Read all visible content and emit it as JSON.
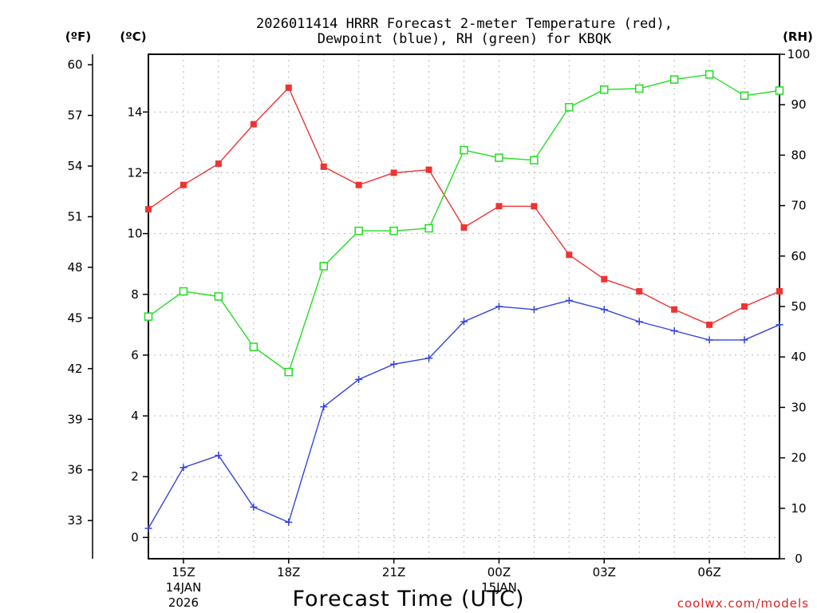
{
  "chart_data": {
    "type": "line",
    "title_line1": "2026011414 HRRR Forecast 2-meter Temperature (red),",
    "title_line2": "Dewpoint (blue), RH (green) for KBQK",
    "xlabel": "Forecast Time (UTC)",
    "credit": "coolwx.com/models",
    "x_range": [
      14,
      32
    ],
    "x": [
      14,
      15,
      16,
      17,
      18,
      19,
      20,
      21,
      22,
      23,
      24,
      25,
      26,
      27,
      28,
      29,
      30,
      31,
      32
    ],
    "x_ticks": [
      {
        "x": 15,
        "label": "15Z",
        "sub1": "14JAN",
        "sub2": "2026"
      },
      {
        "x": 18,
        "label": "18Z",
        "sub1": "",
        "sub2": ""
      },
      {
        "x": 21,
        "label": "21Z",
        "sub1": "",
        "sub2": ""
      },
      {
        "x": 24,
        "label": "00Z",
        "sub1": "15JAN",
        "sub2": ""
      },
      {
        "x": 27,
        "label": "03Z",
        "sub1": "",
        "sub2": ""
      },
      {
        "x": 30,
        "label": "06Z",
        "sub1": "",
        "sub2": ""
      }
    ],
    "left_axis_c": {
      "unit_label": "(ºC)",
      "range": [
        -0.7,
        15.9
      ],
      "ticks": [
        0,
        2,
        4,
        6,
        8,
        10,
        12,
        14
      ]
    },
    "left_axis_f": {
      "unit_label": "(ºF)",
      "ticks": [
        33,
        36,
        39,
        42,
        45,
        48,
        51,
        54,
        57,
        60
      ]
    },
    "right_axis_rh": {
      "unit_label": "(RH)",
      "range": [
        0,
        100
      ],
      "ticks": [
        0,
        10,
        20,
        30,
        40,
        50,
        60,
        70,
        80,
        90,
        100
      ]
    },
    "series": [
      {
        "name": "Temperature (°C)",
        "color": "#ee3333",
        "marker": "filled-square",
        "axis": "left",
        "values": [
          10.8,
          11.6,
          12.3,
          13.6,
          14.8,
          12.2,
          11.6,
          12.0,
          12.1,
          10.2,
          10.9,
          10.9,
          9.3,
          8.5,
          8.1,
          7.5,
          7.0,
          7.6,
          8.1
        ]
      },
      {
        "name": "Dewpoint (°C)",
        "color": "#3344dd",
        "marker": "plus",
        "axis": "left",
        "values": [
          0.3,
          2.3,
          2.7,
          1.0,
          0.5,
          4.3,
          5.2,
          5.7,
          5.9,
          7.1,
          7.6,
          7.5,
          7.8,
          7.5,
          7.1,
          6.8,
          6.5,
          6.5,
          7.0
        ]
      },
      {
        "name": "RH (%)",
        "color": "#22dd22",
        "marker": "open-square",
        "axis": "right",
        "values": [
          48,
          53,
          52,
          42,
          37,
          58,
          65,
          65,
          65.5,
          81,
          79.5,
          79,
          89.5,
          93,
          93.2,
          95,
          96,
          91.8,
          92.8
        ]
      }
    ]
  }
}
